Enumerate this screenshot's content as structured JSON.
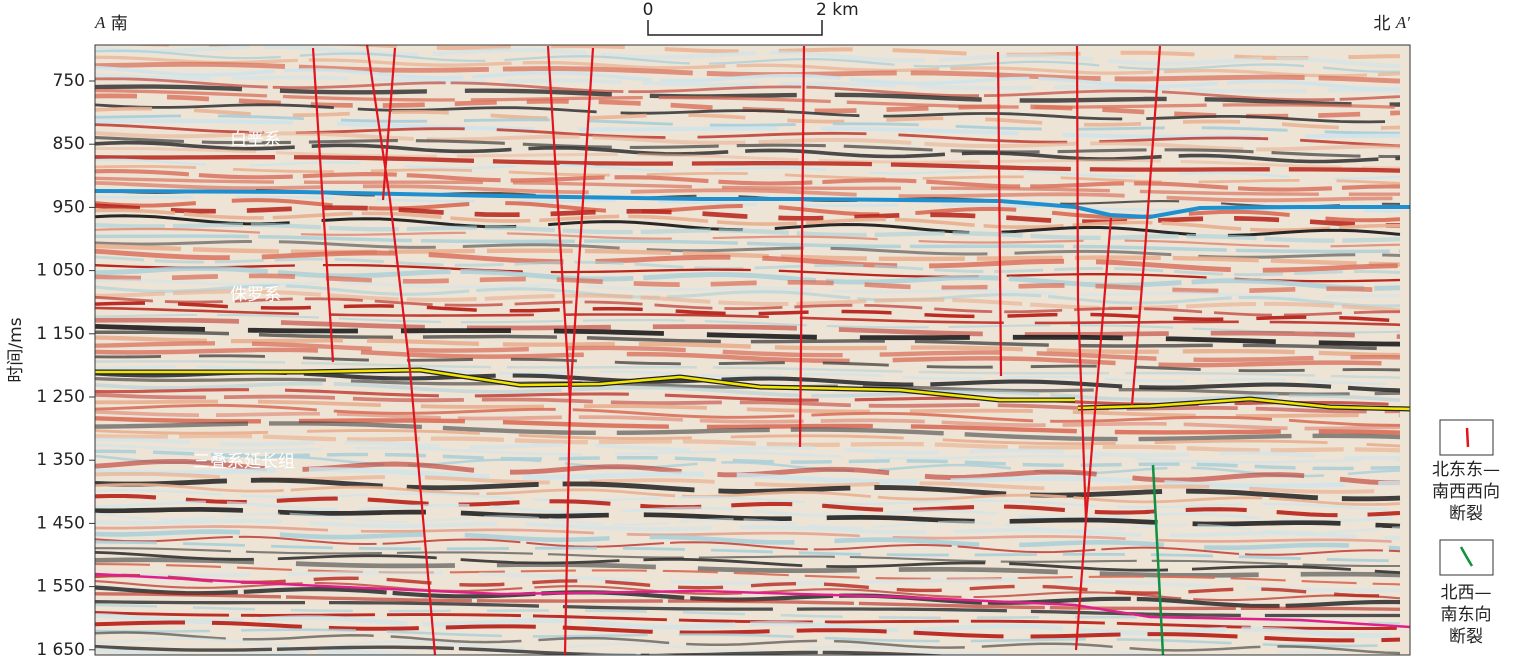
{
  "header": {
    "left": {
      "letter": "A",
      "direction": "南"
    },
    "right": {
      "direction": "北",
      "letter": "A′"
    }
  },
  "scale_bar": {
    "start": "0",
    "end": "2 km"
  },
  "y_axis": {
    "title": "时间/ms",
    "ticks": [
      "750",
      "850",
      "950",
      "1 050",
      "1 150",
      "1 250",
      "1 350",
      "1 450",
      "1 550",
      "1 650"
    ]
  },
  "annotations": [
    "白垩系",
    "侏罗系",
    "三叠系延长组"
  ],
  "legend": [
    {
      "lines": [
        "北东东—",
        "南西西向",
        "断裂"
      ]
    },
    {
      "lines": [
        "北西—",
        "南东向",
        "断裂"
      ]
    }
  ]
}
